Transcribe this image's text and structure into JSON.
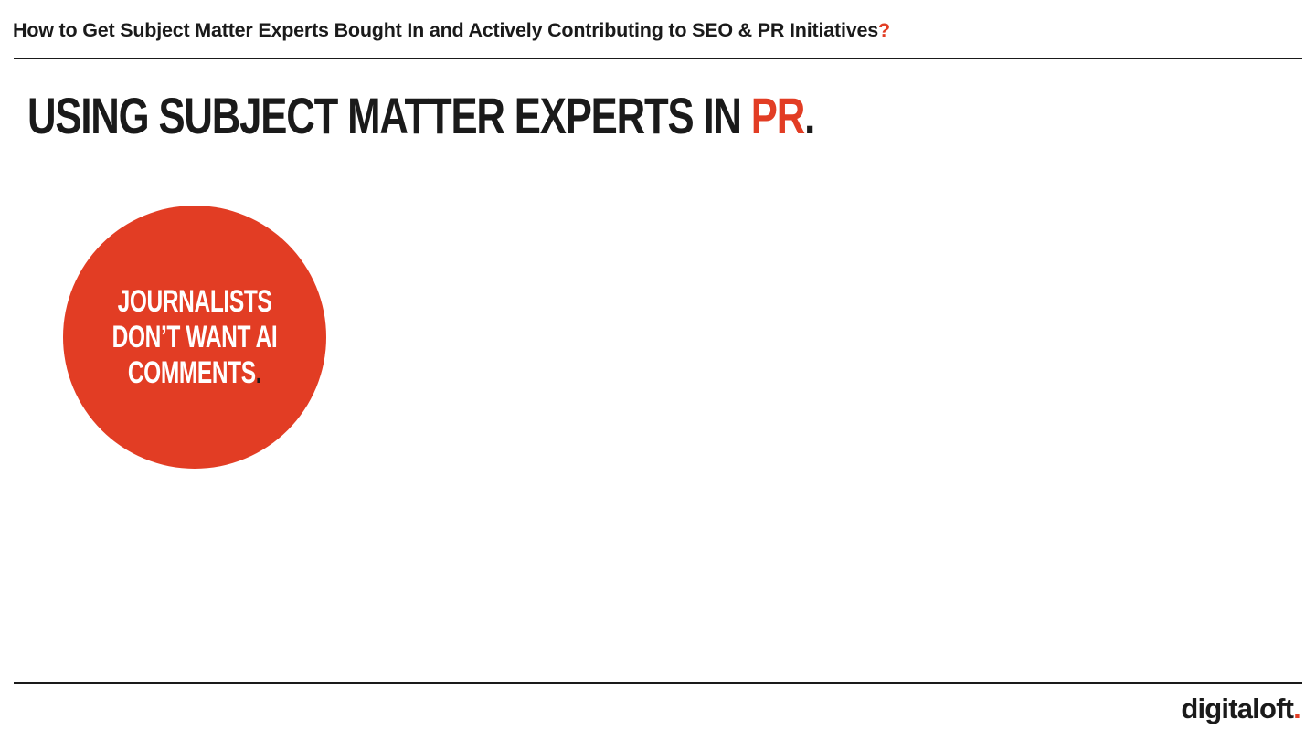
{
  "header": {
    "title": "How to Get Subject Matter Experts Bought In and Actively Contributing to SEO & PR Initiatives",
    "title_punct": "?"
  },
  "slide": {
    "heading_prefix": "USING SUBJECT MATTER EXPERTS IN ",
    "heading_accent": "PR",
    "heading_suffix": "."
  },
  "callout": {
    "line1": "JOURNALISTS",
    "line2": "DON’T WANT AI",
    "line3": "COMMENTS",
    "line3_suffix": "."
  },
  "footer": {
    "logo_text": "digitaloft",
    "logo_dot": "."
  },
  "colors": {
    "accent": "#e23d24",
    "text": "#1a1a1a",
    "background": "#ffffff"
  }
}
